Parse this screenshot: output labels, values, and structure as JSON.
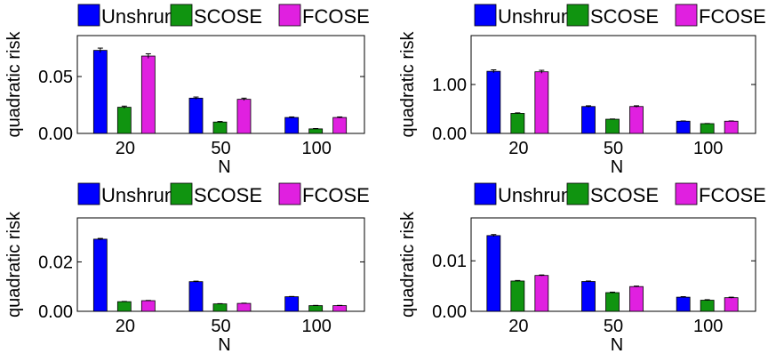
{
  "chart_data": [
    {
      "type": "bar",
      "categories": [
        "20",
        "50",
        "100"
      ],
      "series": [
        {
          "name": "Unshrunk",
          "color": "#0000ff",
          "values": [
            0.073,
            0.031,
            0.014
          ],
          "errors": [
            0.002,
            0.001,
            0.0005
          ]
        },
        {
          "name": "SCOSE",
          "color": "#109410",
          "values": [
            0.023,
            0.01,
            0.004
          ],
          "errors": [
            0.001,
            0.0005,
            0.0003
          ]
        },
        {
          "name": "FCOSE",
          "color": "#e020e0",
          "values": [
            0.068,
            0.03,
            0.014
          ],
          "errors": [
            0.002,
            0.001,
            0.0005
          ]
        }
      ],
      "xlabel": "N",
      "ylabel": "quadratic risk",
      "yticks": [
        0.0,
        0.05
      ],
      "ytick_labels": [
        "0.00",
        "0.05"
      ],
      "ylim": [
        0,
        0.086
      ],
      "legend": "top-outside"
    },
    {
      "type": "bar",
      "categories": [
        "20",
        "50",
        "100"
      ],
      "series": [
        {
          "name": "Unshrunk",
          "color": "#0000ff",
          "values": [
            1.27,
            0.55,
            0.25
          ],
          "errors": [
            0.03,
            0.015,
            0.005
          ]
        },
        {
          "name": "SCOSE",
          "color": "#109410",
          "values": [
            0.41,
            0.29,
            0.2
          ],
          "errors": [
            0.01,
            0.005,
            0.003
          ]
        },
        {
          "name": "FCOSE",
          "color": "#e020e0",
          "values": [
            1.26,
            0.55,
            0.25
          ],
          "errors": [
            0.03,
            0.015,
            0.005
          ]
        }
      ],
      "xlabel": "N",
      "ylabel": "quadratic risk",
      "yticks": [
        0.0,
        1.0
      ],
      "ytick_labels": [
        "0.00",
        "1.00"
      ],
      "ylim": [
        0,
        2.0
      ],
      "legend": "top-outside"
    },
    {
      "type": "bar",
      "categories": [
        "20",
        "50",
        "100"
      ],
      "series": [
        {
          "name": "Unshrunk",
          "color": "#0000ff",
          "values": [
            0.0292,
            0.012,
            0.0059
          ],
          "errors": [
            0.0003,
            0.0002,
            0.0001
          ]
        },
        {
          "name": "SCOSE",
          "color": "#109410",
          "values": [
            0.0039,
            0.003,
            0.0023
          ],
          "errors": [
            0.0001,
            0.0001,
            0.0001
          ]
        },
        {
          "name": "FCOSE",
          "color": "#e020e0",
          "values": [
            0.0043,
            0.0032,
            0.0023
          ],
          "errors": [
            0.0001,
            0.0001,
            0.0001
          ]
        }
      ],
      "xlabel": "N",
      "ylabel": "quadratic risk",
      "yticks": [
        0.0,
        0.02
      ],
      "ytick_labels": [
        "0.00",
        "0.02"
      ],
      "ylim": [
        0,
        0.0378
      ],
      "legend": "top-outside"
    },
    {
      "type": "bar",
      "categories": [
        "20",
        "50",
        "100"
      ],
      "series": [
        {
          "name": "Unshrunk",
          "color": "#0000ff",
          "values": [
            0.015,
            0.0059,
            0.0028
          ],
          "errors": [
            0.0002,
            0.0001,
            0.0001
          ]
        },
        {
          "name": "SCOSE",
          "color": "#109410",
          "values": [
            0.006,
            0.0037,
            0.0022
          ],
          "errors": [
            0.0001,
            0.0001,
            0.0001
          ]
        },
        {
          "name": "FCOSE",
          "color": "#e020e0",
          "values": [
            0.0071,
            0.0049,
            0.0027
          ],
          "errors": [
            0.0001,
            0.0001,
            0.0001
          ]
        }
      ],
      "xlabel": "N",
      "ylabel": "quadratic risk",
      "yticks": [
        0.0,
        0.01
      ],
      "ytick_labels": [
        "0.00",
        "0.01"
      ],
      "ylim": [
        0,
        0.0185
      ],
      "legend": "top-outside"
    }
  ]
}
